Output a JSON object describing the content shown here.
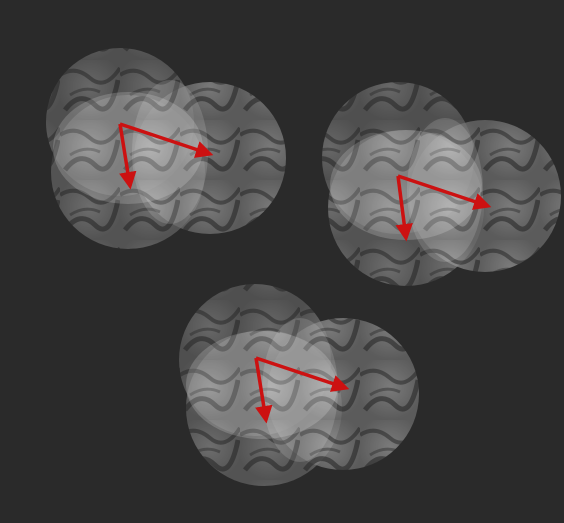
{
  "colors": {
    "background": "#2a2a2a",
    "arrow": "#cc1111",
    "disc_fill": "#8a8a8a",
    "disc_pattern": "#1e1e1e",
    "highlight": "#ffffff"
  },
  "figure": {
    "groups": [
      {
        "name": "top-left-group"
      },
      {
        "name": "top-right-group"
      },
      {
        "name": "bottom-group"
      }
    ]
  }
}
